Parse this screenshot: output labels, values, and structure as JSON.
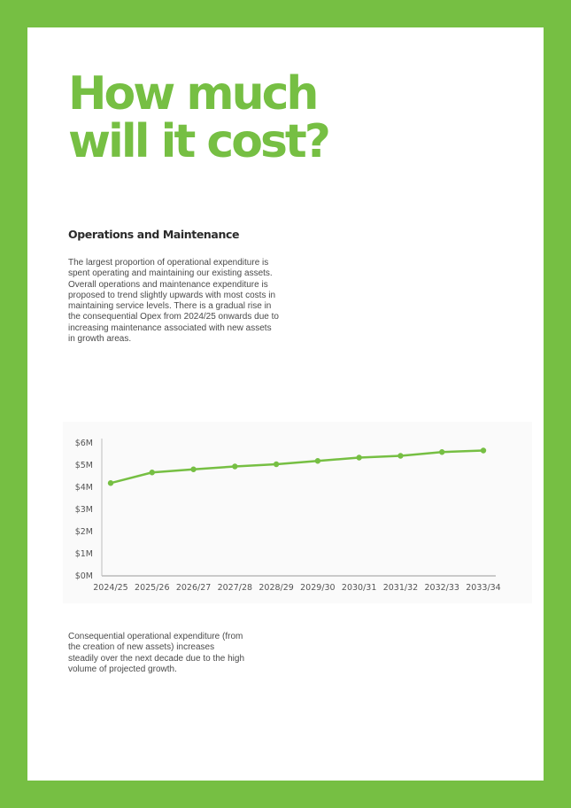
{
  "page": {
    "title_lines": [
      "How much",
      "will it cost?"
    ],
    "section_heading": "Operations and Maintenance",
    "body": "The largest proportion of operational expenditure is spent operating and maintaining our existing assets. Overall operations and maintenance expenditure is proposed to trend slightly upwards with most costs in maintaining service levels. There is a gradual rise in the consequential Opex from 2024/25 onwards due to increasing maintenance associated with new assets in growth areas.",
    "caption": "Consequential operational expenditure (from the creation of new assets) increases steadily over the next decade due to the high volume of projected growth."
  },
  "colors": {
    "brand_green": "#76bf43",
    "text": "#4a4a4a",
    "heading": "#2b2b2b"
  },
  "chart_data": {
    "type": "line",
    "categories": [
      "2024/25",
      "2025/26",
      "2026/27",
      "2027/28",
      "2028/29",
      "2029/30",
      "2030/31",
      "2031/32",
      "2032/33",
      "2033/34"
    ],
    "series": [
      {
        "values": [
          4.15,
          4.63,
          4.77,
          4.9,
          5.0,
          5.15,
          5.3,
          5.38,
          5.55,
          5.62
        ]
      }
    ],
    "y_ticks": [
      0,
      1,
      2,
      3,
      4,
      5,
      6
    ],
    "y_tick_labels": [
      "$0M",
      "$1M",
      "$2M",
      "$3M",
      "$4M",
      "$5M",
      "$6M"
    ],
    "ylim": [
      0,
      6
    ],
    "title": "",
    "xlabel": "",
    "ylabel": "",
    "grid": false,
    "line_color": "#76bf43"
  }
}
